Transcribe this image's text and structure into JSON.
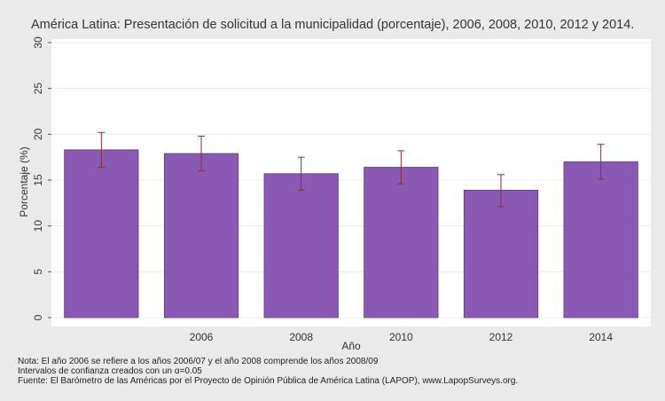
{
  "chart_data": {
    "type": "bar",
    "title": "América Latina: Presentación de solicitud a la municipalidad (porcentaje), 2006, 2008, 2010, 2012 y 2014.",
    "xlabel": "Año",
    "ylabel": "Porcentaje (%)",
    "ylim": [
      0,
      30
    ],
    "yticks": [
      0,
      5,
      10,
      15,
      20,
      25,
      30
    ],
    "grid": true,
    "categories": [
      "",
      "2006",
      "2008",
      "2010",
      "2012",
      "2014"
    ],
    "values": [
      18.3,
      17.9,
      15.7,
      16.4,
      13.9,
      17.0
    ],
    "ci_low": [
      16.4,
      16.0,
      13.9,
      14.6,
      12.1,
      15.1
    ],
    "ci_high": [
      20.2,
      19.8,
      17.5,
      18.2,
      15.6,
      18.9
    ],
    "bar_color": "#8a59b3",
    "error_color": "#8b2d37"
  },
  "notes": {
    "line1": "Nota: El año 2006 se refiere a los años 2006/07 y el año 2008 comprende los años 2008/09",
    "line2": "Intervalos de confianza creados con un α=0.05",
    "line3": "Fuente: El Barómetro de las Américas por el Proyecto de Opinión Pública de América Latina (LAPOP), www.LapopSurveys.org."
  }
}
